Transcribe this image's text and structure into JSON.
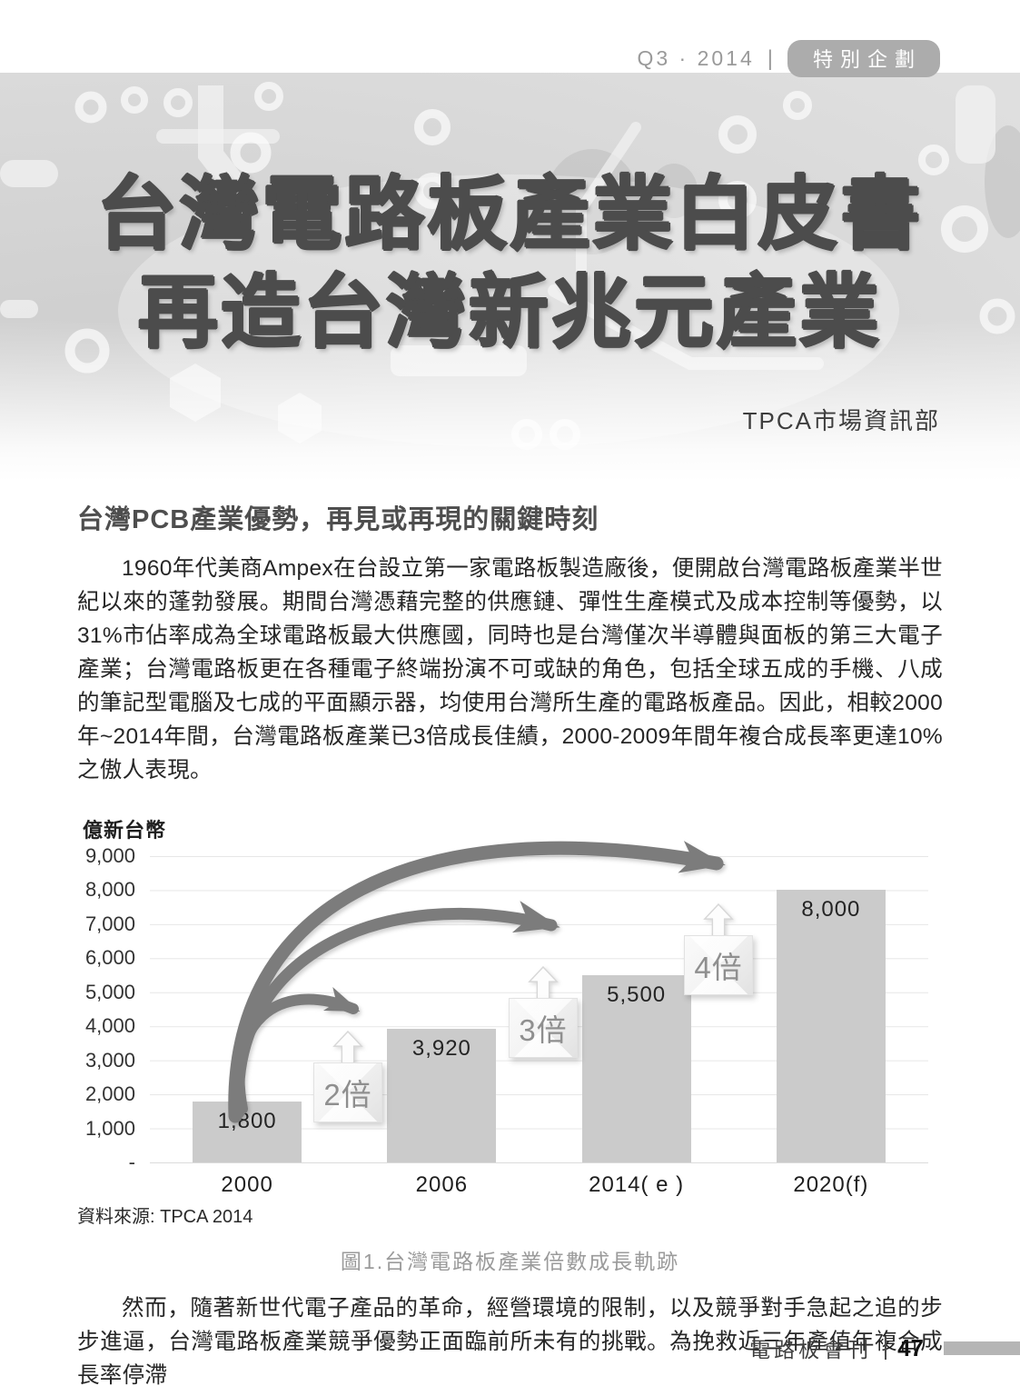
{
  "meta": {
    "issue": "Q3 · 2014",
    "separator": "|",
    "badge": "特別企劃"
  },
  "header": {
    "title_line1": "台灣電路板產業白皮書",
    "title_line2": "再造台灣新兆元產業",
    "author": "TPCA市場資訊部"
  },
  "article": {
    "section_heading": "台灣PCB產業優勢，再見或再現的關鍵時刻",
    "paragraph1": "1960年代美商Ampex在台設立第一家電路板製造廠後，便開啟台灣電路板產業半世紀以來的蓬勃發展。期間台灣憑藉完整的供應鏈、彈性生產模式及成本控制等優勢，以31%市佔率成為全球電路板最大供應國，同時也是台灣僅次半導體與面板的第三大電子產業；台灣電路板更在各種電子終端扮演不可或缺的角色，包括全球五成的手機、八成的筆記型電腦及七成的平面顯示器，均使用台灣所生產的電路板產品。因此，相較2000年~2014年間，台灣電路板產業已3倍成長佳績，2000-2009年間年複合成長率更達10%之傲人表現。",
    "paragraph2": "然而，隨著新世代電子產品的革命，經營環境的限制，以及競爭對手急起之追的步步進逼，台灣電路板產業競爭優勢正面臨前所未有的挑戰。為挽救近三年產值年複合成長率停滯"
  },
  "chart_data": {
    "type": "bar",
    "categories": [
      "2000",
      "2006",
      "2014( e )",
      "2020(f)"
    ],
    "values": [
      1800,
      3920,
      5500,
      8000
    ],
    "value_labels": [
      "1,800",
      "3,920",
      "5,500",
      "8,000"
    ],
    "yticks": [
      "9,000",
      "8,000",
      "7,000",
      "6,000",
      "5,000",
      "4,000",
      "3,000",
      "2,000",
      "1,000",
      "-"
    ],
    "ylabel": "億新台幣",
    "xlabel": "",
    "ylim": [
      0,
      9000
    ],
    "grid": true,
    "legend": false,
    "bar_color": "#cbcbcb",
    "arrow_color": "#7c7c7c",
    "annotations": [
      {
        "label": "2倍"
      },
      {
        "label": "3倍"
      },
      {
        "label": "4倍"
      }
    ],
    "title": "圖1.台灣電路板產業倍數成長軌跡",
    "source": "資料來源: TPCA 2014"
  },
  "icons": {
    "up_arrow": "⇧",
    "growth_arrow": "➥"
  },
  "footer": {
    "journal": "電路板會刊",
    "separator": "|",
    "page": "47"
  }
}
